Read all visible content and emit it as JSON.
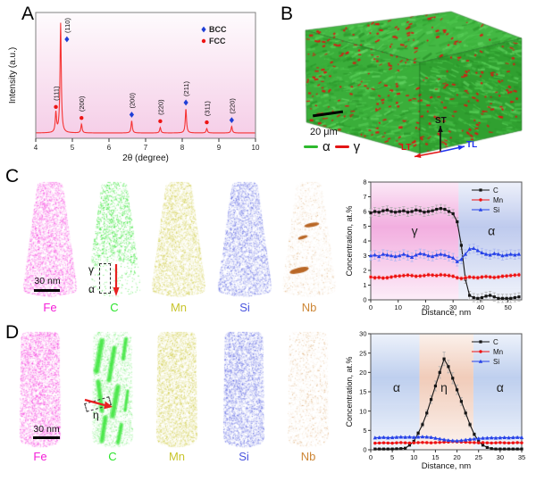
{
  "panel_a": {
    "label": "A",
    "chart_data": {
      "type": "line",
      "xlabel": "2θ (degree)",
      "ylabel": "Intensity (a.u.)",
      "xlim": [
        4,
        10
      ],
      "x_ticks": [
        4,
        5,
        6,
        7,
        8,
        9,
        10
      ],
      "curve_color": "#f63333",
      "bg_top": "#fefbfd",
      "bg_bottom": "#f5cde7",
      "legend": [
        {
          "label": "BCC",
          "marker": "diamond",
          "color": "#1f3fd6"
        },
        {
          "label": "FCC",
          "marker": "circle",
          "color": "#ee1414"
        }
      ],
      "peaks": [
        {
          "two_theta": 4.55,
          "rel_intensity": 0.18,
          "hkl": "(111)",
          "phase": "FCC"
        },
        {
          "two_theta": 4.68,
          "rel_intensity": 1.0,
          "hkl": "(110)",
          "phase": "BCC"
        },
        {
          "two_theta": 5.25,
          "rel_intensity": 0.08,
          "hkl": "(200)",
          "phase": "FCC"
        },
        {
          "two_theta": 6.62,
          "rel_intensity": 0.11,
          "hkl": "(200)",
          "phase": "BCC"
        },
        {
          "two_theta": 7.4,
          "rel_intensity": 0.05,
          "hkl": "(220)",
          "phase": "FCC"
        },
        {
          "two_theta": 8.1,
          "rel_intensity": 0.22,
          "hkl": "(211)",
          "phase": "BCC"
        },
        {
          "two_theta": 8.67,
          "rel_intensity": 0.04,
          "hkl": "(311)",
          "phase": "FCC"
        },
        {
          "two_theta": 9.35,
          "rel_intensity": 0.06,
          "hkl": "(220)",
          "phase": "BCC"
        }
      ]
    }
  },
  "panel_b": {
    "label": "B",
    "scale_bar": "20 μm",
    "matrix_color": "#3ab23a",
    "second_phase_color": "#e31111",
    "legend": [
      {
        "label": "α",
        "color": "#2db92d"
      },
      {
        "label": "γ",
        "color": "#e31414"
      }
    ],
    "axes": [
      {
        "label": "ST",
        "color": "#111111"
      },
      {
        "label": "LT",
        "color": "#e31414"
      },
      {
        "label": "TL",
        "color": "#2233ee"
      }
    ]
  },
  "panel_c": {
    "label": "C",
    "scale_bar": "30 nm",
    "annotations": {
      "gamma": "γ",
      "alpha": "α"
    },
    "tips": [
      {
        "element": "Fe",
        "color": "#f41fd8"
      },
      {
        "element": "C",
        "color": "#2be42b"
      },
      {
        "element": "Mn",
        "color": "#c9c52e"
      },
      {
        "element": "Si",
        "color": "#4853de"
      },
      {
        "element": "Nb",
        "color": "#cd8737"
      }
    ],
    "chart_data": {
      "type": "line",
      "xlabel": "Distance, nm",
      "ylabel": "Concentration, at.%",
      "xlim": [
        0,
        55
      ],
      "ylim": [
        0,
        8
      ],
      "x_ticks": [
        0,
        10,
        20,
        30,
        40,
        50
      ],
      "y_ticks": [
        0,
        1,
        2,
        3,
        4,
        5,
        6,
        7,
        8
      ],
      "regions": [
        {
          "label": "γ",
          "from": 0,
          "to": 32,
          "color": "#ef9ad8",
          "label_x": 16,
          "label_y": 4.4
        },
        {
          "label": "α",
          "from": 32,
          "to": 55,
          "color": "#aebde9",
          "label_x": 44,
          "label_y": 4.4
        }
      ],
      "series": [
        {
          "name": "C",
          "marker": "square",
          "color": "#151515",
          "err_color": "#aaaaaa",
          "err": 0.28,
          "x": [
            0,
            1.5,
            3,
            4.5,
            6,
            7.5,
            9,
            10.5,
            12,
            13.5,
            15,
            16.5,
            18,
            19.5,
            21,
            22.5,
            24,
            25.5,
            27,
            28.5,
            30,
            31.5,
            33,
            34.5,
            36,
            37.5,
            39,
            40.5,
            42,
            43.5,
            45,
            46.5,
            48,
            49.5,
            51,
            52.5,
            54
          ],
          "y": [
            5.9,
            6.0,
            5.95,
            6.05,
            6.1,
            6.0,
            5.95,
            6.0,
            6.05,
            5.95,
            6.0,
            6.1,
            6.05,
            5.95,
            6.0,
            6.05,
            6.15,
            6.2,
            6.15,
            6.0,
            5.85,
            5.3,
            3.7,
            1.4,
            0.3,
            0.15,
            0.1,
            0.15,
            0.25,
            0.3,
            0.2,
            0.1,
            0.1,
            0.1,
            0.1,
            0.15,
            0.2
          ]
        },
        {
          "name": "Mn",
          "marker": "circle",
          "color": "#ee1212",
          "err_color": "#f49c9c",
          "err": 0.12,
          "x": [
            0,
            1.5,
            3,
            4.5,
            6,
            7.5,
            9,
            10.5,
            12,
            13.5,
            15,
            16.5,
            18,
            19.5,
            21,
            22.5,
            24,
            25.5,
            27,
            28.5,
            30,
            31.5,
            33,
            34.5,
            36,
            37.5,
            39,
            40.5,
            42,
            43.5,
            45,
            46.5,
            48,
            49.5,
            51,
            52.5,
            54
          ],
          "y": [
            1.55,
            1.5,
            1.52,
            1.48,
            1.5,
            1.55,
            1.6,
            1.62,
            1.65,
            1.68,
            1.65,
            1.6,
            1.62,
            1.65,
            1.7,
            1.68,
            1.65,
            1.7,
            1.68,
            1.65,
            1.6,
            1.5,
            1.45,
            1.5,
            1.55,
            1.52,
            1.5,
            1.55,
            1.58,
            1.55,
            1.52,
            1.55,
            1.6,
            1.62,
            1.65,
            1.68,
            1.7
          ]
        },
        {
          "name": "Si",
          "marker": "triangle",
          "color": "#2642e8",
          "err_color": "#a7b4f2",
          "err": 0.3,
          "x": [
            0,
            1.5,
            3,
            4.5,
            6,
            7.5,
            9,
            10.5,
            12,
            13.5,
            15,
            16.5,
            18,
            19.5,
            21,
            22.5,
            24,
            25.5,
            27,
            28.5,
            30,
            31.5,
            33,
            34.5,
            36,
            37.5,
            39,
            40.5,
            42,
            43.5,
            45,
            46.5,
            48,
            49.5,
            51,
            52.5,
            54
          ],
          "y": [
            3.0,
            3.05,
            2.95,
            3.1,
            3.05,
            3.0,
            2.95,
            3.0,
            3.1,
            3.0,
            2.9,
            3.05,
            3.15,
            3.1,
            3.0,
            2.95,
            3.05,
            3.1,
            3.05,
            2.95,
            2.85,
            2.6,
            2.75,
            3.1,
            3.45,
            3.5,
            3.35,
            3.2,
            3.1,
            3.05,
            3.15,
            3.1,
            3.0,
            3.05,
            3.1,
            3.05,
            3.1
          ]
        }
      ]
    }
  },
  "panel_d": {
    "label": "D",
    "scale_bar": "30 nm",
    "annotations": {
      "eta": "η"
    },
    "tips": [
      {
        "element": "Fe",
        "color": "#f41fd8"
      },
      {
        "element": "C",
        "color": "#2be42b"
      },
      {
        "element": "Mn",
        "color": "#c9c52e"
      },
      {
        "element": "Si",
        "color": "#4853de"
      },
      {
        "element": "Nb",
        "color": "#cd8737"
      }
    ],
    "chart_data": {
      "type": "line",
      "xlabel": "Distance, nm",
      "ylabel": "Concentration, at.%",
      "xlim": [
        0,
        35
      ],
      "ylim": [
        0,
        30
      ],
      "x_ticks": [
        0,
        5,
        10,
        15,
        20,
        25,
        30,
        35
      ],
      "y_ticks": [
        0,
        5,
        10,
        15,
        20,
        25,
        30
      ],
      "regions": [
        {
          "label": "α",
          "from": 0,
          "to": 11.3,
          "color": "#aec3ea",
          "label_x": 6,
          "label_y": 15
        },
        {
          "label": "η",
          "from": 11.3,
          "to": 23.8,
          "color": "#edbfa8",
          "label_x": 17,
          "label_y": 15
        },
        {
          "label": "α",
          "from": 23.8,
          "to": 35,
          "color": "#aec3ea",
          "label_x": 30,
          "label_y": 15
        }
      ],
      "series": [
        {
          "name": "C",
          "marker": "square",
          "color": "#151515",
          "err_color": "#aaaaaa",
          "err_base": 0.12,
          "err_rel": 0.07,
          "x": [
            1,
            2,
            3,
            4,
            5,
            6,
            7,
            8,
            9,
            10,
            11,
            12,
            13,
            14,
            15,
            16,
            17,
            18,
            19,
            20,
            21,
            22,
            23,
            24,
            25,
            26,
            27,
            28,
            29,
            30,
            31,
            32,
            33,
            34,
            35
          ],
          "y": [
            0.2,
            0.2,
            0.2,
            0.2,
            0.2,
            0.25,
            0.3,
            0.4,
            1.2,
            2.2,
            4.3,
            6.5,
            9.5,
            13,
            16.5,
            20,
            23.5,
            21.5,
            18.5,
            15.5,
            12.5,
            9.5,
            6.5,
            4,
            2.2,
            1.2,
            0.6,
            0.3,
            0.2,
            0.2,
            0.2,
            0.2,
            0.2,
            0.2,
            0.2
          ]
        },
        {
          "name": "Mn",
          "marker": "circle",
          "color": "#ee1212",
          "err_color": "#f49c9c",
          "err_base": 0.12,
          "err_rel": 0,
          "x": [
            1,
            2,
            3,
            4,
            5,
            6,
            7,
            8,
            9,
            10,
            11,
            12,
            13,
            14,
            15,
            16,
            17,
            18,
            19,
            20,
            21,
            22,
            23,
            24,
            25,
            26,
            27,
            28,
            29,
            30,
            31,
            32,
            33,
            34,
            35
          ],
          "y": [
            1.7,
            1.75,
            1.8,
            1.75,
            1.7,
            1.8,
            1.85,
            1.8,
            1.75,
            1.8,
            1.85,
            1.9,
            1.85,
            1.8,
            1.85,
            1.9,
            1.95,
            2.0,
            2.1,
            2.05,
            2.0,
            1.95,
            1.9,
            1.85,
            1.8,
            1.85,
            1.8,
            1.75,
            1.8,
            1.85,
            1.8,
            1.75,
            1.8,
            1.85,
            1.8
          ]
        },
        {
          "name": "Si",
          "marker": "triangle",
          "color": "#2642e8",
          "err_color": "#a7b4f2",
          "err_base": 0.22,
          "err_rel": 0,
          "x": [
            1,
            2,
            3,
            4,
            5,
            6,
            7,
            8,
            9,
            10,
            11,
            12,
            13,
            14,
            15,
            16,
            17,
            18,
            19,
            20,
            21,
            22,
            23,
            24,
            25,
            26,
            27,
            28,
            29,
            30,
            31,
            32,
            33,
            34,
            35
          ],
          "y": [
            3.1,
            3.15,
            3.2,
            3.1,
            3.15,
            3.25,
            3.3,
            3.25,
            3.3,
            3.2,
            3.3,
            3.35,
            3.3,
            3.2,
            3.0,
            2.8,
            2.6,
            2.45,
            2.35,
            2.3,
            2.4,
            2.55,
            2.7,
            2.8,
            2.9,
            3.0,
            3.05,
            3.1,
            3.05,
            3.1,
            3.15,
            3.1,
            3.15,
            3.2,
            3.15
          ]
        }
      ]
    }
  }
}
